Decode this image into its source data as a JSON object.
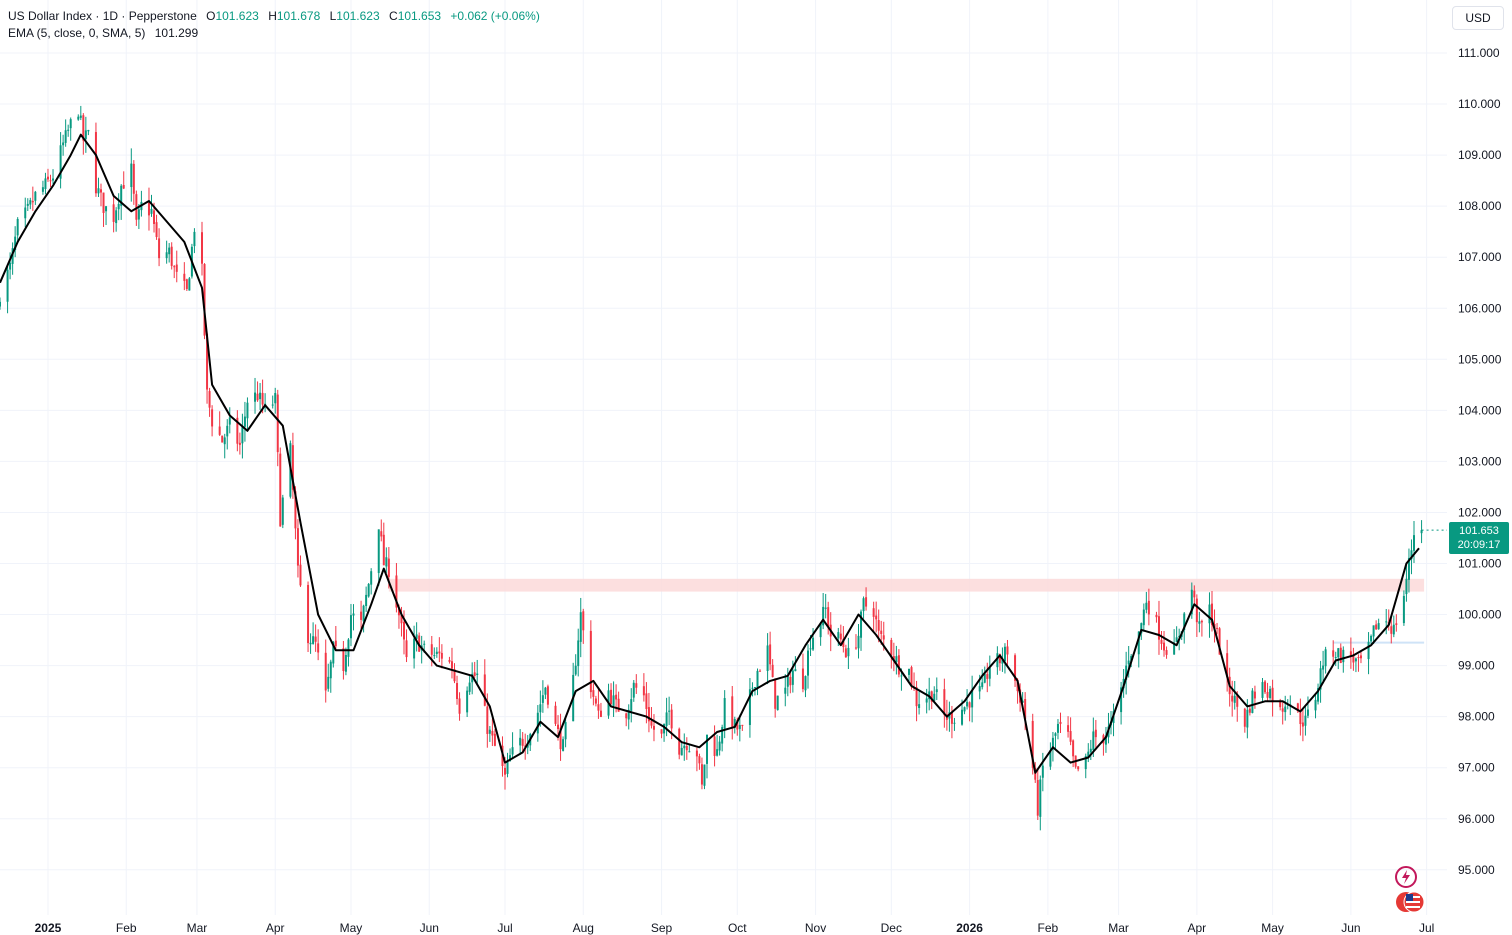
{
  "header": {
    "symbol": "US Dollar Index · 1D · Pepperstone",
    "open_label": "O",
    "open": "101.623",
    "high_label": "H",
    "high": "101.678",
    "low_label": "L",
    "low": "101.623",
    "close_label": "C",
    "close": "101.653",
    "change": "+0.062 (+0.06%)",
    "ema_label": "EMA (5, close, 0, SMA, 5)",
    "ema_value": "101.299"
  },
  "price_scale": {
    "currency": "USD",
    "last_price": "101.653",
    "countdown": "20:09:17"
  },
  "colors": {
    "up": "#089981",
    "down": "#f23645",
    "ema": "#000000",
    "zone": "#fcd9d9",
    "grid": "#f0f3fa",
    "accent": "#089981"
  },
  "icons": {
    "alert": "lightning-icon",
    "flag": "us-flag-icon"
  },
  "chart_data": {
    "type": "candlestick",
    "ylim": [
      95,
      111
    ],
    "y_ticks": [
      "111.000",
      "110.000",
      "109.000",
      "108.000",
      "107.000",
      "106.000",
      "105.000",
      "104.000",
      "103.000",
      "102.000",
      "101.000",
      "100.000",
      "99.000",
      "98.000",
      "97.000",
      "96.000",
      "95.000"
    ],
    "x_ticks": [
      "2025",
      "Feb",
      "Mar",
      "Apr",
      "May",
      "Jun",
      "Jul",
      "Aug",
      "Sep",
      "Oct",
      "Nov",
      "Dec",
      "2026",
      "Feb",
      "Mar",
      "Apr",
      "May",
      "Jun",
      "Jul"
    ],
    "x_range": [
      "2024-12-13",
      "2026-07-10"
    ],
    "resistance_zone": [
      100.45,
      100.7
    ],
    "support_line": 99.45,
    "series": [
      {
        "name": "EMA (5, close, 0, SMA, 5)",
        "points": [
          [
            "2024-12-13",
            106.5
          ],
          [
            "2024-12-20",
            107.3
          ],
          [
            "2024-12-27",
            107.9
          ],
          [
            "2025-01-03",
            108.4
          ],
          [
            "2025-01-10",
            109.0
          ],
          [
            "2025-01-14",
            109.4
          ],
          [
            "2025-01-20",
            109.0
          ],
          [
            "2025-01-27",
            108.2
          ],
          [
            "2025-02-03",
            107.9
          ],
          [
            "2025-02-10",
            108.1
          ],
          [
            "2025-02-17",
            107.7
          ],
          [
            "2025-02-24",
            107.3
          ],
          [
            "2025-03-03",
            106.4
          ],
          [
            "2025-03-07",
            104.5
          ],
          [
            "2025-03-14",
            103.9
          ],
          [
            "2025-03-21",
            103.6
          ],
          [
            "2025-03-28",
            104.1
          ],
          [
            "2025-04-04",
            103.7
          ],
          [
            "2025-04-11",
            101.8
          ],
          [
            "2025-04-18",
            100.0
          ],
          [
            "2025-04-25",
            99.3
          ],
          [
            "2025-05-02",
            99.3
          ],
          [
            "2025-05-09",
            100.2
          ],
          [
            "2025-05-14",
            100.9
          ],
          [
            "2025-05-21",
            100.0
          ],
          [
            "2025-05-28",
            99.4
          ],
          [
            "2025-06-04",
            99.0
          ],
          [
            "2025-06-11",
            98.9
          ],
          [
            "2025-06-18",
            98.8
          ],
          [
            "2025-06-25",
            98.2
          ],
          [
            "2025-07-01",
            97.1
          ],
          [
            "2025-07-08",
            97.3
          ],
          [
            "2025-07-15",
            97.9
          ],
          [
            "2025-07-22",
            97.6
          ],
          [
            "2025-07-29",
            98.5
          ],
          [
            "2025-08-05",
            98.7
          ],
          [
            "2025-08-12",
            98.2
          ],
          [
            "2025-08-19",
            98.1
          ],
          [
            "2025-08-26",
            98.0
          ],
          [
            "2025-09-02",
            97.8
          ],
          [
            "2025-09-09",
            97.5
          ],
          [
            "2025-09-16",
            97.4
          ],
          [
            "2025-09-23",
            97.7
          ],
          [
            "2025-09-30",
            97.8
          ],
          [
            "2025-10-07",
            98.5
          ],
          [
            "2025-10-14",
            98.7
          ],
          [
            "2025-10-21",
            98.8
          ],
          [
            "2025-10-28",
            99.4
          ],
          [
            "2025-11-04",
            99.9
          ],
          [
            "2025-11-11",
            99.4
          ],
          [
            "2025-11-18",
            100.0
          ],
          [
            "2025-11-25",
            99.6
          ],
          [
            "2025-12-02",
            99.1
          ],
          [
            "2025-12-09",
            98.6
          ],
          [
            "2025-12-16",
            98.4
          ],
          [
            "2025-12-23",
            98.0
          ],
          [
            "2025-12-30",
            98.3
          ],
          [
            "2026-01-06",
            98.8
          ],
          [
            "2026-01-13",
            99.2
          ],
          [
            "2026-01-20",
            98.7
          ],
          [
            "2026-01-27",
            96.9
          ],
          [
            "2026-02-03",
            97.4
          ],
          [
            "2026-02-10",
            97.1
          ],
          [
            "2026-02-17",
            97.2
          ],
          [
            "2026-02-24",
            97.6
          ],
          [
            "2026-03-03",
            98.6
          ],
          [
            "2026-03-10",
            99.7
          ],
          [
            "2026-03-17",
            99.6
          ],
          [
            "2026-03-24",
            99.4
          ],
          [
            "2026-03-31",
            100.2
          ],
          [
            "2026-04-07",
            99.9
          ],
          [
            "2026-04-14",
            98.6
          ],
          [
            "2026-04-21",
            98.2
          ],
          [
            "2026-04-28",
            98.3
          ],
          [
            "2026-05-05",
            98.3
          ],
          [
            "2026-05-12",
            98.1
          ],
          [
            "2026-05-19",
            98.5
          ],
          [
            "2026-05-26",
            99.1
          ],
          [
            "2026-06-02",
            99.2
          ],
          [
            "2026-06-09",
            99.4
          ],
          [
            "2026-06-16",
            99.8
          ],
          [
            "2026-06-23",
            101.0
          ],
          [
            "2026-06-28",
            101.3
          ]
        ]
      }
    ],
    "closes": [
      [
        "2024-12-13",
        106.3
      ],
      [
        "2024-12-17",
        106.8
      ],
      [
        "2024-12-20",
        107.6
      ],
      [
        "2024-12-24",
        107.9
      ],
      [
        "2024-12-27",
        108.2
      ],
      [
        "2024-12-31",
        108.4
      ],
      [
        "2025-01-03",
        108.6
      ],
      [
        "2025-01-07",
        109.2
      ],
      [
        "2025-01-10",
        109.6
      ],
      [
        "2025-01-13",
        109.9
      ],
      [
        "2025-01-15",
        109.3
      ],
      [
        "2025-01-17",
        109.4
      ],
      [
        "2025-01-20",
        108.4
      ],
      [
        "2025-01-23",
        108.0
      ],
      [
        "2025-01-27",
        107.8
      ],
      [
        "2025-01-30",
        108.4
      ],
      [
        "2025-02-03",
        108.7
      ],
      [
        "2025-02-05",
        107.6
      ],
      [
        "2025-02-07",
        108.0
      ],
      [
        "2025-02-11",
        107.9
      ],
      [
        "2025-02-14",
        107.0
      ],
      [
        "2025-02-18",
        107.1
      ],
      [
        "2025-02-21",
        106.6
      ],
      [
        "2025-02-25",
        106.3
      ],
      [
        "2025-02-28",
        107.6
      ],
      [
        "2025-03-03",
        106.7
      ],
      [
        "2025-03-05",
        104.3
      ],
      [
        "2025-03-07",
        103.8
      ],
      [
        "2025-03-11",
        103.4
      ],
      [
        "2025-03-14",
        103.7
      ],
      [
        "2025-03-18",
        103.3
      ],
      [
        "2025-03-21",
        104.2
      ],
      [
        "2025-03-25",
        104.3
      ],
      [
        "2025-03-28",
        104.0
      ],
      [
        "2025-04-01",
        104.2
      ],
      [
        "2025-04-03",
        101.9
      ],
      [
        "2025-04-07",
        103.2
      ],
      [
        "2025-04-10",
        100.8
      ],
      [
        "2025-04-14",
        99.6
      ],
      [
        "2025-04-17",
        99.4
      ],
      [
        "2025-04-21",
        98.4
      ],
      [
        "2025-04-24",
        99.3
      ],
      [
        "2025-04-28",
        99.0
      ],
      [
        "2025-05-01",
        100.0
      ],
      [
        "2025-05-05",
        99.8
      ],
      [
        "2025-05-08",
        100.6
      ],
      [
        "2025-05-12",
        101.8
      ],
      [
        "2025-05-14",
        101.0
      ],
      [
        "2025-05-16",
        100.9
      ],
      [
        "2025-05-20",
        100.0
      ],
      [
        "2025-05-23",
        99.1
      ],
      [
        "2025-05-27",
        99.5
      ],
      [
        "2025-05-30",
        99.3
      ],
      [
        "2025-06-03",
        99.2
      ],
      [
        "2025-06-06",
        99.2
      ],
      [
        "2025-06-10",
        99.0
      ],
      [
        "2025-06-13",
        98.2
      ],
      [
        "2025-06-17",
        98.8
      ],
      [
        "2025-06-20",
        98.8
      ],
      [
        "2025-06-24",
        97.8
      ],
      [
        "2025-06-27",
        97.4
      ],
      [
        "2025-07-01",
        96.8
      ],
      [
        "2025-07-03",
        97.2
      ],
      [
        "2025-07-07",
        97.5
      ],
      [
        "2025-07-10",
        97.6
      ],
      [
        "2025-07-14",
        98.1
      ],
      [
        "2025-07-17",
        98.6
      ],
      [
        "2025-07-21",
        97.8
      ],
      [
        "2025-07-24",
        97.4
      ],
      [
        "2025-07-28",
        98.7
      ],
      [
        "2025-07-31",
        100.0
      ],
      [
        "2025-08-04",
        98.6
      ],
      [
        "2025-08-07",
        98.0
      ],
      [
        "2025-08-11",
        98.5
      ],
      [
        "2025-08-14",
        98.2
      ],
      [
        "2025-08-18",
        98.1
      ],
      [
        "2025-08-21",
        98.6
      ],
      [
        "2025-08-25",
        98.4
      ],
      [
        "2025-08-28",
        97.8
      ],
      [
        "2025-09-01",
        97.6
      ],
      [
        "2025-09-04",
        98.1
      ],
      [
        "2025-09-08",
        97.4
      ],
      [
        "2025-09-11",
        97.5
      ],
      [
        "2025-09-15",
        97.3
      ],
      [
        "2025-09-17",
        96.6
      ],
      [
        "2025-09-19",
        97.6
      ],
      [
        "2025-09-23",
        97.3
      ],
      [
        "2025-09-26",
        98.2
      ],
      [
        "2025-09-30",
        97.8
      ],
      [
        "2025-10-03",
        97.7
      ],
      [
        "2025-10-07",
        98.6
      ],
      [
        "2025-10-09",
        98.9
      ],
      [
        "2025-10-13",
        99.3
      ],
      [
        "2025-10-16",
        98.3
      ],
      [
        "2025-10-20",
        98.5
      ],
      [
        "2025-10-23",
        98.9
      ],
      [
        "2025-10-27",
        98.7
      ],
      [
        "2025-10-30",
        99.5
      ],
      [
        "2025-11-03",
        99.9
      ],
      [
        "2025-11-05",
        100.1
      ],
      [
        "2025-11-07",
        99.6
      ],
      [
        "2025-11-11",
        99.5
      ],
      [
        "2025-11-14",
        99.2
      ],
      [
        "2025-11-18",
        99.6
      ],
      [
        "2025-11-20",
        100.2
      ],
      [
        "2025-11-24",
        100.1
      ],
      [
        "2025-11-26",
        99.6
      ],
      [
        "2025-12-01",
        99.3
      ],
      [
        "2025-12-04",
        99.0
      ],
      [
        "2025-12-08",
        98.9
      ],
      [
        "2025-12-11",
        98.3
      ],
      [
        "2025-12-15",
        98.4
      ],
      [
        "2025-12-18",
        98.5
      ],
      [
        "2025-12-22",
        98.0
      ],
      [
        "2025-12-26",
        98.0
      ],
      [
        "2025-12-30",
        98.2
      ],
      [
        "2026-01-02",
        98.4
      ],
      [
        "2026-01-06",
        98.5
      ],
      [
        "2026-01-09",
        99.0
      ],
      [
        "2026-01-13",
        99.1
      ],
      [
        "2026-01-16",
        99.3
      ],
      [
        "2026-01-20",
        98.5
      ],
      [
        "2026-01-22",
        98.3
      ],
      [
        "2026-01-26",
        97.0
      ],
      [
        "2026-01-28",
        96.2
      ],
      [
        "2026-01-30",
        97.0
      ],
      [
        "2026-02-03",
        97.5
      ],
      [
        "2026-02-05",
        97.8
      ],
      [
        "2026-02-09",
        97.6
      ],
      [
        "2026-02-12",
        96.9
      ],
      [
        "2026-02-16",
        97.1
      ],
      [
        "2026-02-19",
        97.6
      ],
      [
        "2026-02-23",
        97.6
      ],
      [
        "2026-02-26",
        97.8
      ],
      [
        "2026-03-02",
        98.5
      ],
      [
        "2026-03-05",
        99.2
      ],
      [
        "2026-03-09",
        99.6
      ],
      [
        "2026-03-12",
        100.3
      ],
      [
        "2026-03-16",
        99.8
      ],
      [
        "2026-03-19",
        99.4
      ],
      [
        "2026-03-23",
        99.3
      ],
      [
        "2026-03-26",
        99.8
      ],
      [
        "2026-03-30",
        100.5
      ],
      [
        "2026-04-02",
        99.7
      ],
      [
        "2026-04-06",
        100.1
      ],
      [
        "2026-04-09",
        99.6
      ],
      [
        "2026-04-13",
        98.6
      ],
      [
        "2026-04-16",
        98.3
      ],
      [
        "2026-04-20",
        97.9
      ],
      [
        "2026-04-23",
        98.4
      ],
      [
        "2026-04-27",
        98.6
      ],
      [
        "2026-04-30",
        98.5
      ],
      [
        "2026-05-04",
        98.1
      ],
      [
        "2026-05-07",
        98.4
      ],
      [
        "2026-05-11",
        98.0
      ],
      [
        "2026-05-14",
        97.9
      ],
      [
        "2026-05-18",
        98.4
      ],
      [
        "2026-05-21",
        99.1
      ],
      [
        "2026-05-25",
        99.3
      ],
      [
        "2026-05-28",
        99.2
      ],
      [
        "2026-06-01",
        99.2
      ],
      [
        "2026-06-04",
        99.0
      ],
      [
        "2026-06-08",
        99.3
      ],
      [
        "2026-06-11",
        99.8
      ],
      [
        "2026-06-15",
        99.9
      ],
      [
        "2026-06-18",
        99.7
      ],
      [
        "2026-06-22",
        100.4
      ],
      [
        "2026-06-24",
        101.0
      ],
      [
        "2026-06-26",
        101.6
      ],
      [
        "2026-06-29",
        101.653
      ]
    ]
  }
}
